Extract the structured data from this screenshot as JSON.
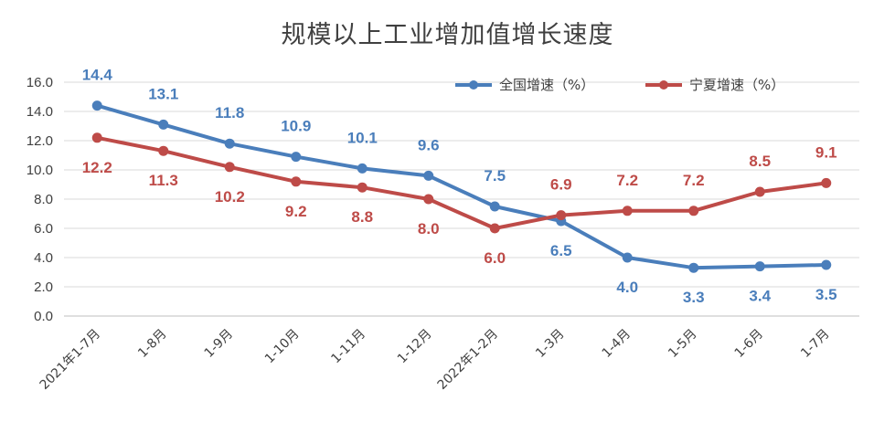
{
  "chart_data": {
    "type": "line",
    "title": "规模以上工业增加值增长速度",
    "categories": [
      "2021年1-7月",
      "1-8月",
      "1-9月",
      "1-10月",
      "1-11月",
      "1-12月",
      "2022年1-2月",
      "1-3月",
      "1-4月",
      "1-5月",
      "1-6月",
      "1-7月"
    ],
    "series": [
      {
        "name": "全国增速（%）",
        "color": "#4a7ebb",
        "values": [
          14.4,
          13.1,
          11.8,
          10.9,
          10.1,
          9.6,
          7.5,
          6.5,
          4.0,
          3.3,
          3.4,
          3.5
        ],
        "labels": [
          "14.4",
          "13.1",
          "11.8",
          "10.9",
          "10.1",
          "9.6",
          "7.5",
          "6.5",
          "4.0",
          "3.3",
          "3.4",
          "3.5"
        ]
      },
      {
        "name": "宁夏增速（%）",
        "color": "#be4b48",
        "values": [
          12.2,
          11.3,
          10.2,
          9.2,
          8.8,
          8.0,
          6.0,
          6.9,
          7.2,
          7.2,
          8.5,
          9.1
        ],
        "labels": [
          "12.2",
          "11.3",
          "10.2",
          "9.2",
          "8.8",
          "8.0",
          "6.0",
          "6.9",
          "7.2",
          "7.2",
          "8.5",
          "9.1"
        ]
      }
    ],
    "ylim": [
      0,
      16
    ],
    "yticks": [
      "0.0",
      "2.0",
      "4.0",
      "6.0",
      "8.0",
      "10.0",
      "12.0",
      "14.0",
      "16.0"
    ],
    "grid": true,
    "legend_position": "top-right",
    "xlabel": "",
    "ylabel": ""
  }
}
